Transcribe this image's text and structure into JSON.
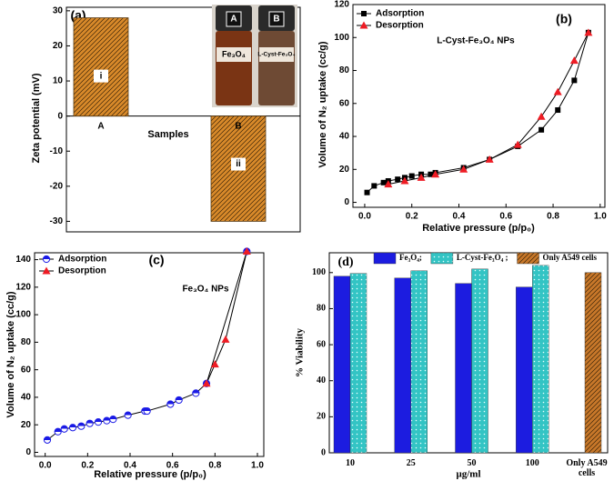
{
  "chart_data": [
    {
      "type": "bar",
      "panel_label": "(a)",
      "categories": [
        "A",
        "B"
      ],
      "values": [
        28,
        -30
      ],
      "color": "#d98a2a",
      "fill_style": "hatch",
      "bar_labels": [
        "i",
        "ii"
      ],
      "xlabel": "Samples",
      "ylabel": "Zeta potential (mV)",
      "ylim": [
        -33,
        31
      ],
      "yticks": [
        -30,
        -20,
        -10,
        0,
        10,
        20,
        30
      ],
      "photo_labels": [
        "A",
        "B",
        "Fe₃O₄",
        "L-Cyst-Fe₃O₄"
      ]
    },
    {
      "type": "line",
      "panel_label": "(b)",
      "annotation": "L-Cyst-Fe₃O₄ NPs",
      "xlabel": "Relative pressure (p/p₀)",
      "ylabel": "Volume of N₂ uptake (cc/g)",
      "xlim": [
        -0.05,
        1.02
      ],
      "ylim": [
        -3,
        120
      ],
      "xticks": [
        {
          "value": 0,
          "label": "0.0"
        },
        0.2,
        0.4,
        0.6,
        0.8,
        {
          "value": 1,
          "label": "1.0"
        }
      ],
      "yticks": [
        0,
        20,
        40,
        60,
        80,
        100,
        120
      ],
      "legend": "upper left",
      "line_color": "#000000",
      "series": [
        {
          "name": "Adsorption",
          "color": "#000000",
          "marker": "square",
          "x": [
            0.01,
            0.04,
            0.08,
            0.1,
            0.14,
            0.17,
            0.2,
            0.24,
            0.28,
            0.3,
            0.42,
            0.53,
            0.65,
            0.75,
            0.82,
            0.89,
            0.95
          ],
          "values": [
            6,
            10,
            12,
            13,
            14,
            15,
            16,
            17,
            17,
            18,
            21,
            26,
            34,
            44,
            56,
            74,
            103
          ]
        },
        {
          "name": "Desorption",
          "color": "#ee1c24",
          "marker": "triangle",
          "x": [
            0.95,
            0.89,
            0.82,
            0.75,
            0.65,
            0.53,
            0.42,
            0.3,
            0.24,
            0.17,
            0.1
          ],
          "values": [
            103,
            86,
            67,
            52,
            35,
            26,
            20,
            17,
            15,
            13,
            11
          ]
        }
      ]
    },
    {
      "type": "line",
      "panel_label": "(c)",
      "annotation": "Fe₃O₄ NPs",
      "xlabel": "Relative pressure (p/p₀)",
      "ylabel": "Volume of N₂ uptake (cc/g)",
      "xlim": [
        -0.05,
        1.03
      ],
      "ylim": [
        -3,
        145
      ],
      "xticks": [
        {
          "value": 0,
          "label": "0.0"
        },
        0.2,
        0.4,
        0.6,
        0.8,
        {
          "value": 1,
          "label": "1.0"
        }
      ],
      "yticks": [
        0,
        20,
        40,
        60,
        80,
        100,
        120,
        140
      ],
      "legend": "upper left",
      "line_color": "#000000",
      "series": [
        {
          "name": "Adsorption",
          "color": "#1a1ae6",
          "marker": "circle",
          "x": [
            0.01,
            0.06,
            0.09,
            0.13,
            0.17,
            0.21,
            0.25,
            0.29,
            0.32,
            0.39,
            0.47,
            0.48,
            0.59,
            0.63,
            0.71,
            0.76,
            0.95
          ],
          "values": [
            9,
            15,
            17,
            18,
            19,
            21,
            22,
            23,
            24,
            27,
            30,
            30,
            35,
            38,
            43,
            50,
            146
          ]
        },
        {
          "name": "Desorption",
          "color": "#ee1c24",
          "marker": "triangle",
          "x": [
            0.95,
            0.85,
            0.8,
            0.76
          ],
          "values": [
            146,
            82,
            64,
            50
          ]
        }
      ]
    },
    {
      "type": "bar",
      "panel_label": "(d)",
      "xlabel": "μg/ml",
      "ylabel": "% Viability",
      "categories": [
        "10",
        "25",
        "50",
        "100",
        "Only A549 cells"
      ],
      "ylim": [
        0,
        111
      ],
      "yticks": [
        0,
        20,
        40,
        60,
        80,
        100
      ],
      "legend": "top",
      "series": [
        {
          "name": "Fe₃O₄;",
          "color": "#1c1ce0",
          "fill_style": "solid",
          "values": [
            98,
            97,
            94,
            92,
            null
          ]
        },
        {
          "name": "L-Cyst-Fe₃O₄ ;",
          "color": "#33c4c4",
          "fill_style": "dots",
          "values": [
            99.5,
            101,
            102,
            104,
            null
          ]
        },
        {
          "name": "Only A549 cells",
          "color": "#c8782a",
          "fill_style": "hatch",
          "values": [
            null,
            null,
            null,
            null,
            100
          ]
        }
      ]
    }
  ]
}
